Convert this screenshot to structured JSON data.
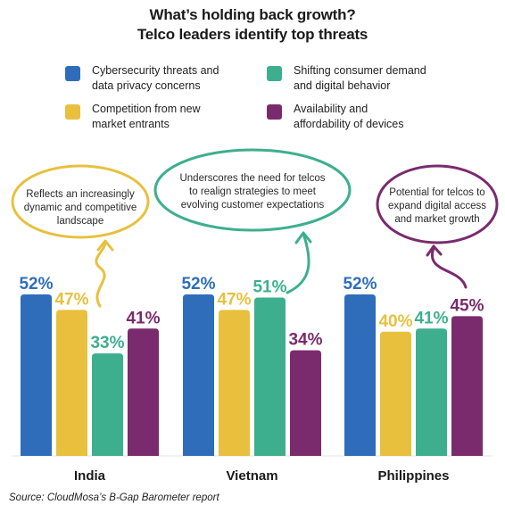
{
  "title": {
    "line1": "What’s holding back growth?",
    "line2": "Telco leaders identify top threats"
  },
  "legend": [
    {
      "line1": "Cybersecurity threats and",
      "line2": "data privacy concerns",
      "color": "#2f6dbb"
    },
    {
      "line1": "Shifting consumer demand",
      "line2": "and digital behavior",
      "color": "#3daf8f"
    },
    {
      "line1": "Competition from new",
      "line2": "market entrants",
      "color": "#e8c03e"
    },
    {
      "line1": "Availability and",
      "line2": "affordability of devices",
      "color": "#7a2b6e"
    }
  ],
  "callouts": [
    {
      "lines": [
        "Reflects an increasingly",
        "dynamic and competitive",
        "landscape"
      ],
      "color": "#e8c03e"
    },
    {
      "lines": [
        "Underscores the need for telcos",
        "to realign strategies to meet",
        "evolving customer expectations"
      ],
      "color": "#3daf8f"
    },
    {
      "lines": [
        "Potential for telcos to",
        "expand digital access",
        "and market growth"
      ],
      "color": "#7a2b6e"
    }
  ],
  "source": "Source: CloudMosa’s B-Gap Barometer report",
  "chart_data": {
    "type": "bar",
    "categories": [
      "India",
      "Vietnam",
      "Philippines"
    ],
    "series": [
      {
        "name": "Cybersecurity threats and data privacy concerns",
        "values": [
          52,
          52,
          52
        ],
        "labels": [
          "52%",
          "52%",
          "52%"
        ],
        "color": "#2f6dbb"
      },
      {
        "name": "Competition from new market entrants",
        "values": [
          47,
          47,
          40
        ],
        "labels": [
          "47%",
          "47%",
          "40%"
        ],
        "color": "#e8c03e"
      },
      {
        "name": "Shifting consumer demand and digital behavior",
        "values": [
          33,
          51,
          41
        ],
        "labels": [
          "33%",
          "51%",
          "41%"
        ],
        "color": "#3daf8f"
      },
      {
        "name": "Availability and affordability of devices",
        "values": [
          41,
          34,
          45
        ],
        "labels": [
          "41%",
          "34%",
          "45%"
        ],
        "color": "#7a2b6e"
      }
    ],
    "ylim": [
      0,
      100
    ],
    "grid": false,
    "legend_position": "top"
  }
}
